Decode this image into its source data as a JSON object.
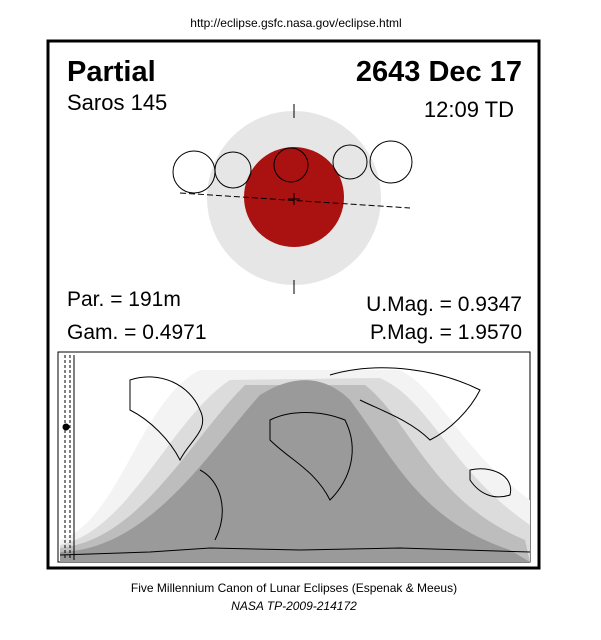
{
  "url": "http://eclipse.gsfc.nasa.gov/eclipse.html",
  "header": {
    "type": "Partial",
    "date": "2643 Dec 17",
    "saros": "Saros 145",
    "time": "12:09 TD"
  },
  "parameters": {
    "par": "Par. = 191m",
    "gam": "Gam. = 0.4971",
    "umag": "U.Mag. = 0.9347",
    "pmag": "P.Mag. = 1.9570"
  },
  "footer": {
    "canon": "Five Millennium Canon of Lunar Eclipses (Espenak & Meeus)",
    "reference": "NASA TP-2009-214172"
  }
}
